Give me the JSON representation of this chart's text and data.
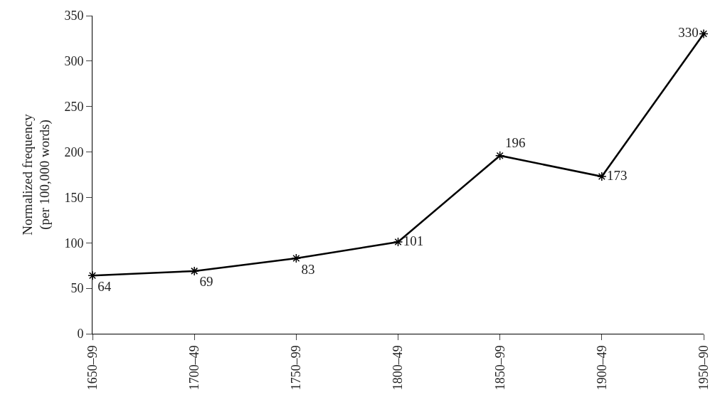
{
  "chart_data": {
    "type": "line",
    "ylabel": "Normalized frequency\n(per 100,000 words)",
    "categories": [
      "1650–99",
      "1700–49",
      "1750–99",
      "1800–49",
      "1850–99",
      "1900–49",
      "1950–90"
    ],
    "series": [
      {
        "color": "#000000",
        "values": [
          64,
          69,
          83,
          101,
          196,
          173,
          330
        ]
      }
    ],
    "ylim": [
      0,
      350
    ],
    "yticks": [
      0,
      50,
      100,
      150,
      200,
      250,
      300,
      350
    ],
    "marker": "cross",
    "line_style": "solid",
    "data_labels": true
  }
}
